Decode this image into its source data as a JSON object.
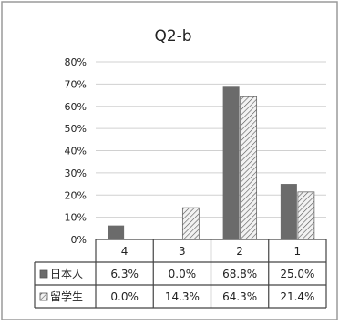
{
  "chart_data": {
    "type": "bar",
    "title": "Q2-b",
    "categories": [
      "4",
      "3",
      "2",
      "1"
    ],
    "ylim": [
      0,
      80
    ],
    "yticks": [
      "0%",
      "10%",
      "20%",
      "30%",
      "40%",
      "50%",
      "60%",
      "70%",
      "80%"
    ],
    "grid": true,
    "legend_placement": "data-table",
    "series": [
      {
        "name": "日本人",
        "values": [
          6.3,
          0.0,
          68.8,
          25.0
        ],
        "labels": [
          "6.3%",
          "0.0%",
          "68.8%",
          "25.0%"
        ],
        "color": "#6b6b6b",
        "pattern": "solid"
      },
      {
        "name": "留学生",
        "values": [
          0.0,
          14.3,
          64.3,
          21.4
        ],
        "labels": [
          "0.0%",
          "14.3%",
          "64.3%",
          "21.4%"
        ],
        "color": "#f0f0f0",
        "pattern": "diagonal-hatch"
      }
    ]
  }
}
